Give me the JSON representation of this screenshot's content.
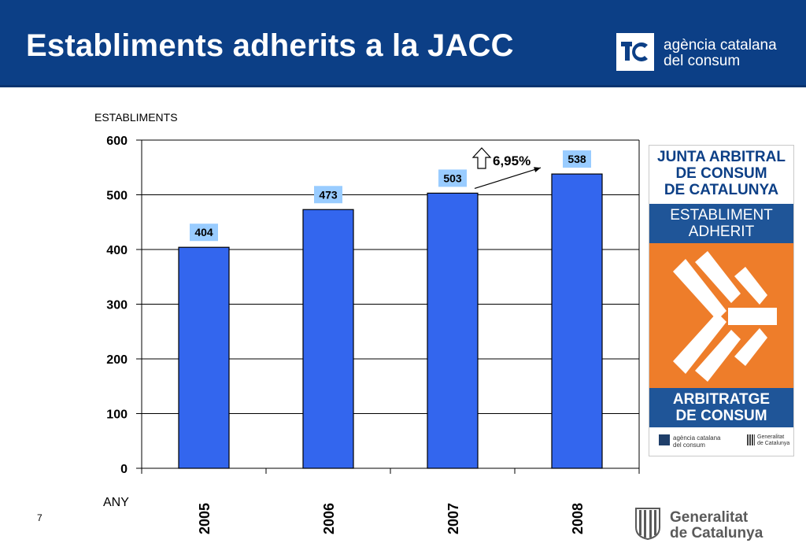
{
  "header": {
    "title": "Establiments adherits a la JACC",
    "logo_line1": "agència catalana",
    "logo_line2": "del consum"
  },
  "slide_number": "7",
  "colors": {
    "header_bg": "#0c3f86",
    "bar_fill": "#3366ee",
    "label_box": "#99ccff",
    "badge_blue": "#1f5598",
    "badge_orange": "#ee7d2a"
  },
  "chart_data": {
    "type": "bar",
    "categories": [
      "2005",
      "2006",
      "2007",
      "2008"
    ],
    "values": [
      404,
      473,
      503,
      538
    ],
    "data_labels": [
      "404",
      "473",
      "503",
      "538"
    ],
    "ylabel": "ESTABLIMENTS",
    "xlabel": "ANY",
    "ylim": [
      0,
      600
    ],
    "yticks": [
      0,
      100,
      200,
      300,
      400,
      500,
      600
    ],
    "grid": true,
    "annotation": {
      "text": "6,95%",
      "icon": "up-arrow-icon",
      "from_category": "2007",
      "to_category": "2008"
    }
  },
  "badge": {
    "title_lines": [
      "JUNTA ARBITRAL",
      "DE CONSUM",
      "DE CATALUNYA"
    ],
    "status_lines": [
      "ESTABLIMENT",
      "ADHERIT"
    ],
    "bottom_lines": [
      "ARBITRATGE",
      "DE CONSUM"
    ],
    "footer_left_lines": [
      "agència catalana",
      "del consum"
    ],
    "footer_right_lines": [
      "Generalitat",
      "de Catalunya"
    ]
  },
  "footer_logo": {
    "line1": "Generalitat",
    "line2": "de Catalunya"
  }
}
